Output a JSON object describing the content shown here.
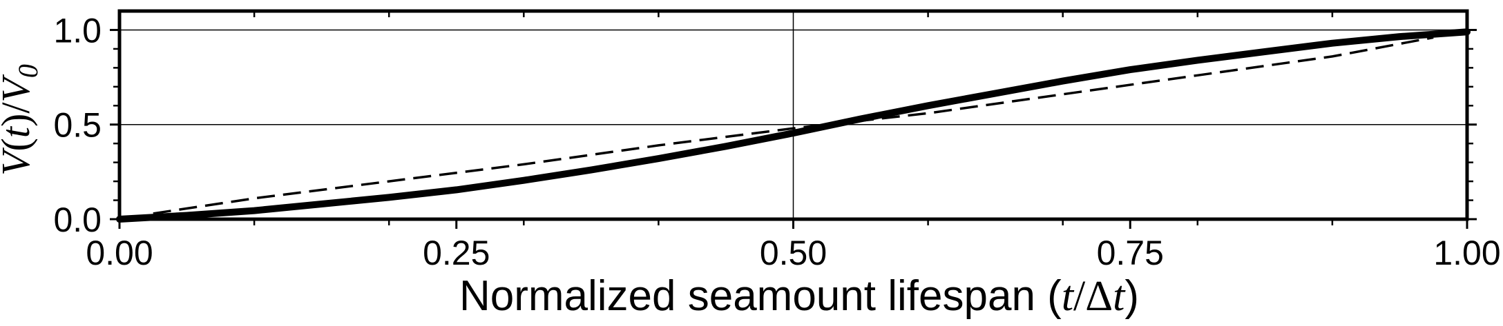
{
  "chart_data": {
    "type": "line",
    "title": "",
    "xlabel": "Normalized seamount lifespan (t/Δt)",
    "xlabel_parts": {
      "prefix": "Normalized seamount lifespan (",
      "italic_t1": "t",
      "slash_delta": "/Δ",
      "italic_t2": "t",
      "suffix": ")"
    },
    "ylabel": "V(t)/V0",
    "ylabel_parts": {
      "v": "V",
      "open": "(",
      "t": "t",
      "close": ")/",
      "v2": "V",
      "sub": "0"
    },
    "xlim": [
      0,
      1
    ],
    "ylim": [
      0,
      1.1
    ],
    "x_ticks": [
      0,
      0.25,
      0.5,
      0.75,
      1.0
    ],
    "x_tick_labels": [
      "0.00",
      "0.25",
      "0.50",
      "0.75",
      "1.00"
    ],
    "x_minor_ticks": [
      0.1,
      0.2,
      0.3,
      0.4,
      0.6,
      0.7,
      0.8,
      0.9
    ],
    "y_ticks": [
      0,
      0.5,
      1.0
    ],
    "y_tick_labels": [
      "0.0",
      "0.5",
      "1.0"
    ],
    "y_minor_ticks": [
      0.1,
      0.2,
      0.3,
      0.4,
      0.6,
      0.7,
      0.8,
      0.9
    ],
    "gridlines": {
      "x": [
        0.5
      ],
      "y": [
        0.5,
        1.0
      ]
    },
    "grid": true,
    "legend": "none",
    "series": [
      {
        "style": "solid-thick",
        "color": "#000000",
        "x": [
          0,
          0.05,
          0.1,
          0.15,
          0.2,
          0.25,
          0.3,
          0.35,
          0.4,
          0.45,
          0.5,
          0.55,
          0.6,
          0.65,
          0.7,
          0.75,
          0.8,
          0.85,
          0.9,
          0.95,
          1.0
        ],
        "y": [
          0.0,
          0.02,
          0.045,
          0.08,
          0.115,
          0.155,
          0.205,
          0.26,
          0.32,
          0.385,
          0.455,
          0.53,
          0.6,
          0.665,
          0.73,
          0.79,
          0.84,
          0.885,
          0.93,
          0.965,
          0.99
        ]
      },
      {
        "style": "dashed",
        "color": "#000000",
        "x": [
          0.025,
          0.1,
          0.2,
          0.3,
          0.4,
          0.5,
          0.6,
          0.7,
          0.8,
          0.9,
          0.975
        ],
        "y": [
          0.03,
          0.11,
          0.2,
          0.29,
          0.39,
          0.48,
          0.56,
          0.66,
          0.76,
          0.86,
          0.96
        ]
      }
    ]
  }
}
